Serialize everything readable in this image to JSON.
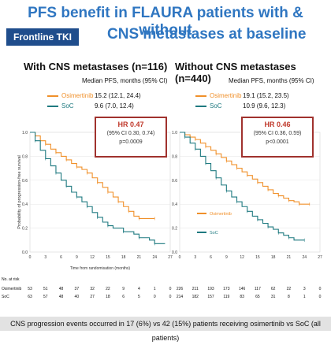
{
  "header": {
    "title_line1": "PFS benefit in FLAURA patients with & without",
    "title_line2": "CNS metastases at baseline",
    "badge": "Frontline TKI"
  },
  "footer": "CNS progression events occurred in 17 (6%) vs 42 (15%) patients receiving osimertinib vs SoC (all patients)",
  "colors": {
    "osimertinib": "#f0902a",
    "soc": "#1f7a80",
    "hr_border": "#a0322e",
    "title": "#2f76c1"
  },
  "chart_data": [
    {
      "type": "line",
      "title": "With CNS metastases (n=116)",
      "legend_header": "Median PFS, months (95% CI)",
      "legend": [
        {
          "name": "Osimertinib",
          "value": "15.2 (12.1, 24.4)"
        },
        {
          "name": "SoC",
          "value": "9.6 (7.0, 12.4)"
        }
      ],
      "hr": {
        "label": "HR 0.47",
        "ci": "(95% CI 0.30, 0.74)",
        "p": "p=0.0009"
      },
      "ylabel": "Probability of progression-free survival",
      "xlabel": "Time from randomisation (months)",
      "xticks": [
        0,
        3,
        6,
        9,
        12,
        15,
        18,
        21,
        24,
        27
      ],
      "yticks": [
        "0.0",
        "0.2",
        "0.4",
        "0.6",
        "0.8",
        "1.0"
      ],
      "xlim": [
        0,
        27
      ],
      "ylim": [
        0,
        1
      ],
      "series": [
        {
          "name": "Osimertinib",
          "x": [
            0,
            1,
            2,
            3,
            4,
            5,
            6,
            7,
            8,
            9,
            10,
            11,
            12,
            13,
            14,
            15,
            16,
            17,
            18,
            19,
            20,
            21,
            22,
            24
          ],
          "y": [
            1.0,
            0.97,
            0.93,
            0.9,
            0.86,
            0.83,
            0.8,
            0.77,
            0.74,
            0.71,
            0.69,
            0.66,
            0.62,
            0.58,
            0.54,
            0.5,
            0.46,
            0.42,
            0.38,
            0.34,
            0.3,
            0.28,
            0.28,
            0.28
          ]
        },
        {
          "name": "SoC",
          "x": [
            0,
            1,
            2,
            3,
            4,
            5,
            6,
            7,
            8,
            9,
            10,
            11,
            12,
            13,
            14,
            15,
            16,
            18,
            20,
            21,
            23,
            24,
            26
          ],
          "y": [
            1.0,
            0.93,
            0.85,
            0.78,
            0.72,
            0.66,
            0.6,
            0.55,
            0.5,
            0.46,
            0.42,
            0.38,
            0.33,
            0.29,
            0.25,
            0.22,
            0.2,
            0.17,
            0.15,
            0.12,
            0.1,
            0.07,
            0.07
          ]
        }
      ],
      "at_risk": {
        "header": "No. at risk",
        "rows": [
          {
            "name": "Osimertinib",
            "values": [
              "53",
              "51",
              48,
              37,
              32,
              22,
              9,
              4,
              1,
              0
            ]
          },
          {
            "name": "SoC",
            "values": [
              "63",
              "57",
              48,
              40,
              27,
              18,
              6,
              5,
              0,
              0
            ]
          }
        ]
      }
    },
    {
      "type": "line",
      "title": "Without CNS metastases (n=440)",
      "legend_header": "Median PFS, months (95% CI)",
      "legend": [
        {
          "name": "Osimertinib",
          "value": "19.1 (15.2, 23.5)"
        },
        {
          "name": "SoC",
          "value": "10.9 (9.6, 12.3)"
        }
      ],
      "hr": {
        "label": "HR 0.46",
        "ci": "(95% CI 0.36, 0.59)",
        "p": "p<0.0001"
      },
      "plot_legend": [
        "Osimertinib",
        "SoC"
      ],
      "xticks": [
        0,
        3,
        6,
        9,
        12,
        15,
        18,
        21,
        24,
        27
      ],
      "yticks": [
        "0.0",
        "0.2",
        "0.4",
        "0.6",
        "0.8",
        "1.0"
      ],
      "xlim": [
        0,
        27
      ],
      "ylim": [
        0,
        1
      ],
      "series": [
        {
          "name": "Osimertinib",
          "x": [
            0,
            1,
            2,
            3,
            4,
            5,
            6,
            7,
            8,
            9,
            10,
            11,
            12,
            13,
            14,
            15,
            16,
            17,
            18,
            19,
            20,
            21,
            22,
            23,
            24,
            25
          ],
          "y": [
            1.0,
            0.98,
            0.96,
            0.94,
            0.91,
            0.88,
            0.85,
            0.82,
            0.79,
            0.76,
            0.73,
            0.7,
            0.67,
            0.64,
            0.61,
            0.58,
            0.55,
            0.52,
            0.49,
            0.47,
            0.45,
            0.43,
            0.42,
            0.4,
            0.4,
            0.4
          ]
        },
        {
          "name": "SoC",
          "x": [
            0,
            1,
            2,
            3,
            4,
            5,
            6,
            7,
            8,
            9,
            10,
            11,
            12,
            13,
            14,
            15,
            16,
            17,
            18,
            19,
            20,
            21,
            22,
            24
          ],
          "y": [
            1.0,
            0.96,
            0.91,
            0.86,
            0.8,
            0.74,
            0.68,
            0.62,
            0.56,
            0.51,
            0.46,
            0.42,
            0.38,
            0.34,
            0.3,
            0.27,
            0.24,
            0.21,
            0.19,
            0.16,
            0.14,
            0.12,
            0.1,
            0.1
          ]
        }
      ],
      "at_risk": {
        "rows": [
          {
            "name": "Osimertinib",
            "values": [
              "226",
              "211",
              193,
              173,
              146,
              117,
              62,
              22,
              3,
              0
            ]
          },
          {
            "name": "SoC",
            "values": [
              "214",
              "182",
              157,
              119,
              83,
              65,
              31,
              8,
              1,
              0
            ]
          }
        ]
      }
    }
  ]
}
